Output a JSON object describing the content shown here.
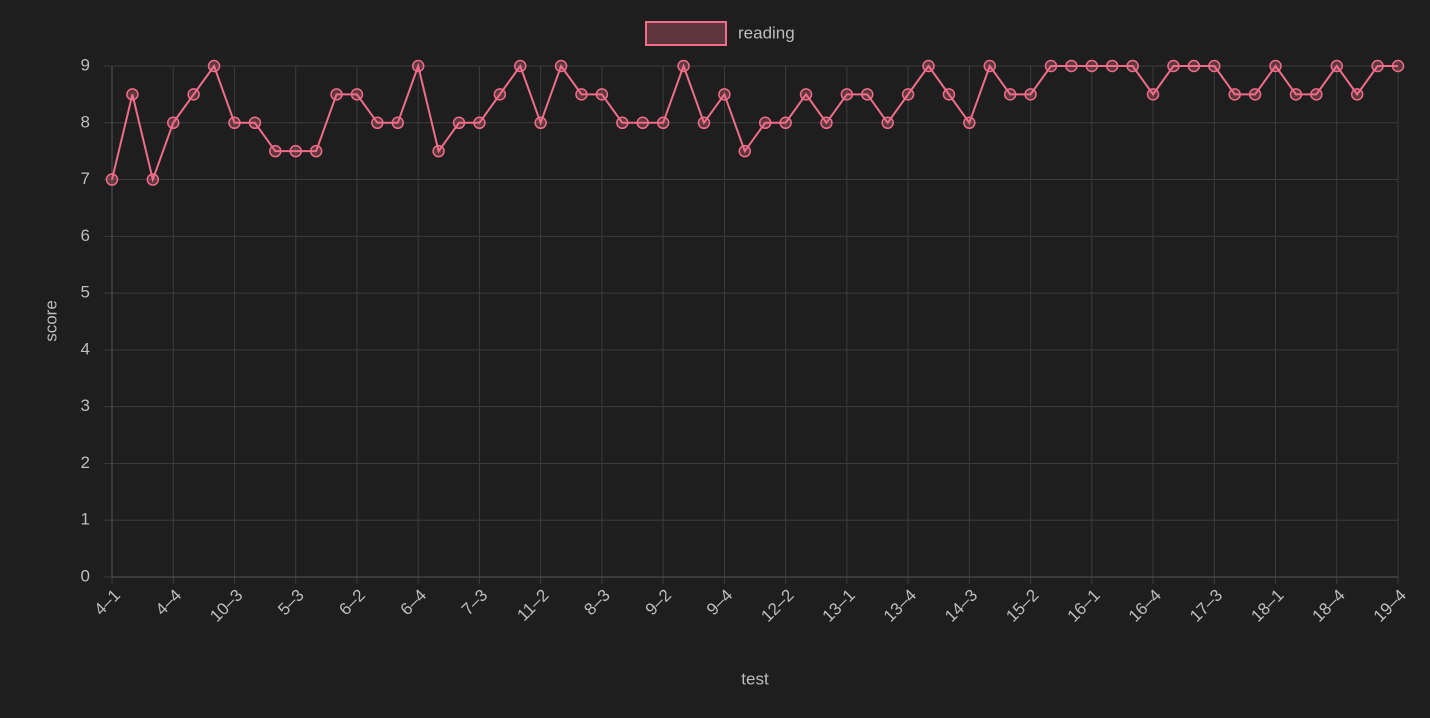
{
  "chart_data": {
    "type": "line",
    "x_label": "test",
    "y_label": "score",
    "categories": [
      "4–1",
      null,
      null,
      "4–4",
      null,
      null,
      "10–3",
      null,
      null,
      "5–3",
      null,
      null,
      "6–2",
      null,
      null,
      "6–4",
      null,
      null,
      "7–3",
      null,
      null,
      "11–2",
      null,
      null,
      "8–3",
      null,
      null,
      "9–2",
      null,
      null,
      "9–4",
      null,
      null,
      "12–2",
      null,
      null,
      "13–1",
      null,
      null,
      "13–4",
      null,
      null,
      "14–3",
      null,
      null,
      "15–2",
      null,
      null,
      "16–1",
      null,
      null,
      "16–4",
      null,
      null,
      "17–3",
      null,
      null,
      "18–1",
      null,
      null,
      "18–4",
      null,
      null,
      "19–4"
    ],
    "series": [
      {
        "name": "reading",
        "color": "#ef6d89",
        "values": [
          7,
          8.5,
          7,
          8,
          8.5,
          9,
          8,
          8,
          7.5,
          7.5,
          7.5,
          8.5,
          8.5,
          8,
          8,
          9,
          7.5,
          8,
          8,
          8.5,
          9,
          8,
          9,
          8.5,
          8.5,
          8,
          8,
          8,
          9,
          8,
          8.5,
          7.5,
          8,
          8,
          8.5,
          8,
          8.5,
          8.5,
          8,
          8.5,
          9,
          8.5,
          8,
          9,
          8.5,
          8.5,
          9,
          9,
          9,
          9,
          9,
          8.5,
          9,
          9,
          9,
          8.5,
          8.5,
          9,
          8.5,
          8.5,
          9,
          8.5,
          9,
          9
        ]
      }
    ],
    "ylim": [
      0,
      9
    ],
    "yticks": [
      0,
      1,
      2,
      3,
      4,
      5,
      6,
      7,
      8,
      9
    ],
    "grid": true,
    "legend": "top"
  }
}
